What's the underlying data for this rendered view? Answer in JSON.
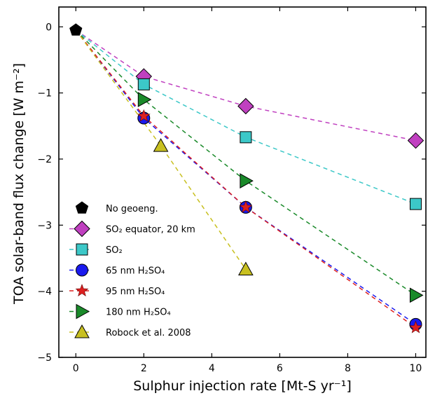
{
  "chart_data": {
    "type": "scatter",
    "title": "",
    "xlabel": "Sulphur injection rate [Mt-S yr⁻¹]",
    "ylabel": "TOA solar-band flux change [W m⁻²]",
    "xlim": [
      -0.5,
      10.3
    ],
    "ylim": [
      -5,
      0.3
    ],
    "xticks": [
      0,
      2,
      4,
      6,
      8,
      10
    ],
    "yticks": [
      0,
      -1,
      -2,
      -3,
      -4,
      -5
    ],
    "xtick_labels": [
      "0",
      "2",
      "4",
      "6",
      "8",
      "10"
    ],
    "ytick_labels": [
      "0",
      "−1",
      "−2",
      "−3",
      "−4",
      "−5"
    ],
    "grid": false,
    "legend_position": "lower-left",
    "series": [
      {
        "name": "No geoeng.",
        "marker": "pentagon",
        "color": "#000000",
        "line": false,
        "x": [
          0
        ],
        "y": [
          -0.05
        ]
      },
      {
        "name": "SO₂ equator, 20 km",
        "marker": "diamond",
        "color": "#c040c0",
        "line": true,
        "x": [
          0,
          2,
          5,
          10
        ],
        "y": [
          -0.05,
          -0.75,
          -1.2,
          -1.72
        ]
      },
      {
        "name": "SO₂",
        "marker": "square",
        "color": "#3cc8c8",
        "line": true,
        "x": [
          0,
          2,
          5,
          10
        ],
        "y": [
          -0.05,
          -0.87,
          -1.67,
          -2.68
        ]
      },
      {
        "name": "65 nm H₂SO₄",
        "marker": "circle",
        "color": "#1a1aee",
        "line": true,
        "x": [
          0,
          2,
          5,
          10
        ],
        "y": [
          -0.05,
          -1.38,
          -2.73,
          -4.5
        ]
      },
      {
        "name": "95 nm H₂SO₄",
        "marker": "star",
        "color": "#dd2020",
        "line": true,
        "x": [
          0,
          2,
          5,
          10
        ],
        "y": [
          -0.05,
          -1.35,
          -2.73,
          -4.55
        ]
      },
      {
        "name": "180 nm H₂SO₄",
        "marker": "triangle-right",
        "color": "#1a8a2a",
        "line": true,
        "x": [
          0,
          2,
          5,
          10
        ],
        "y": [
          -0.05,
          -1.1,
          -2.33,
          -4.06
        ]
      },
      {
        "name": "Robock et al. 2008",
        "marker": "triangle-up",
        "color": "#c8c020",
        "line": true,
        "x": [
          0,
          2.5,
          5
        ],
        "y": [
          -0.05,
          -1.8,
          -3.67
        ]
      }
    ]
  }
}
